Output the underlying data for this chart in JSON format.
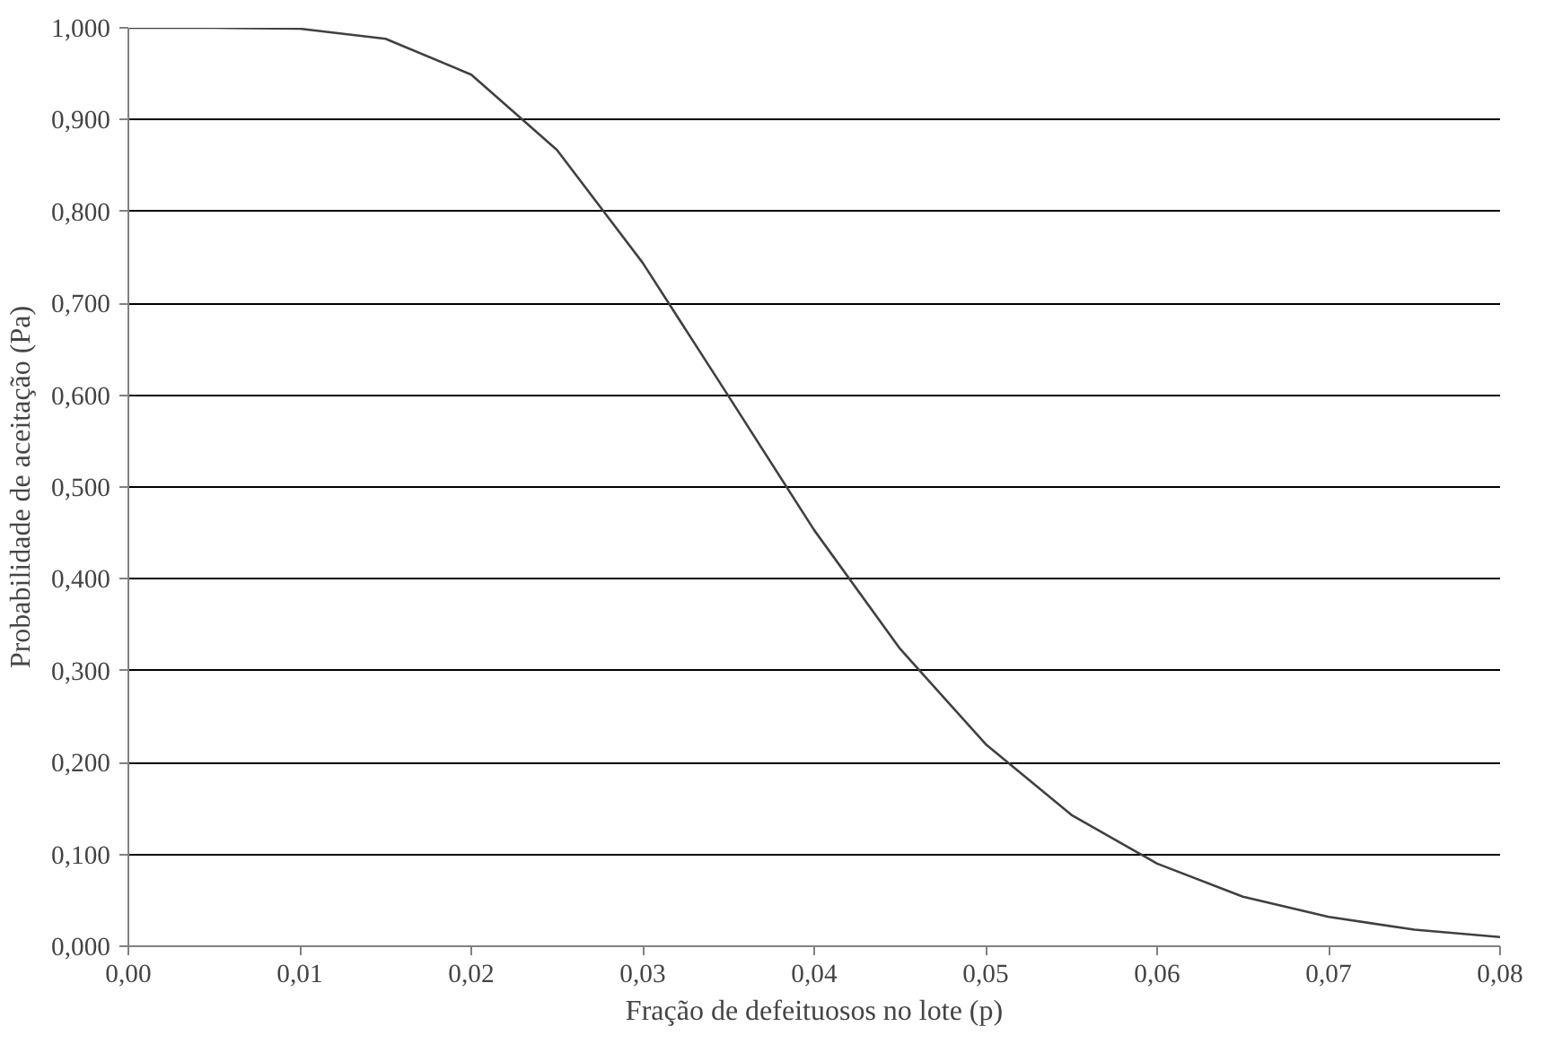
{
  "chart_data": {
    "type": "line",
    "xlabel": "Fração de defeituosos no lote (p)",
    "ylabel": "Probabilidade de aceitação (Pa)",
    "x": [
      0,
      0.005,
      0.01,
      0.015,
      0.02,
      0.025,
      0.03,
      0.035,
      0.04,
      0.045,
      0.05,
      0.055,
      0.06,
      0.065,
      0.07,
      0.075,
      0.08
    ],
    "series": [
      {
        "color": "#404040",
        "values": [
          1.0,
          1.0,
          0.999,
          0.988,
          0.949,
          0.867,
          0.744,
          0.599,
          0.453,
          0.324,
          0.22,
          0.143,
          0.09,
          0.054,
          0.032,
          0.018,
          0.01
        ]
      }
    ],
    "xlim": [
      0,
      0.08
    ],
    "ylim": [
      0,
      1
    ],
    "xticks": [
      {
        "value": 0,
        "label": "0,00"
      },
      {
        "value": 0.01,
        "label": "0,01"
      },
      {
        "value": 0.02,
        "label": "0,02"
      },
      {
        "value": 0.03,
        "label": "0,03"
      },
      {
        "value": 0.04,
        "label": "0,04"
      },
      {
        "value": 0.05,
        "label": "0,05"
      },
      {
        "value": 0.06,
        "label": "0,06"
      },
      {
        "value": 0.07,
        "label": "0,07"
      },
      {
        "value": 0.08,
        "label": "0,08"
      }
    ],
    "yticks": [
      {
        "value": 0,
        "label": "0,000"
      },
      {
        "value": 0.1,
        "label": "0,100"
      },
      {
        "value": 0.2,
        "label": "0,200"
      },
      {
        "value": 0.3,
        "label": "0,300"
      },
      {
        "value": 0.4,
        "label": "0,400"
      },
      {
        "value": 0.5,
        "label": "0,500"
      },
      {
        "value": 0.6,
        "label": "0,600"
      },
      {
        "value": 0.7,
        "label": "0,700"
      },
      {
        "value": 0.8,
        "label": "0,800"
      },
      {
        "value": 0.9,
        "label": "0,900"
      },
      {
        "value": 1.0,
        "label": "1,000"
      }
    ],
    "grid": "y",
    "marker": "none",
    "line_style": "solid"
  }
}
